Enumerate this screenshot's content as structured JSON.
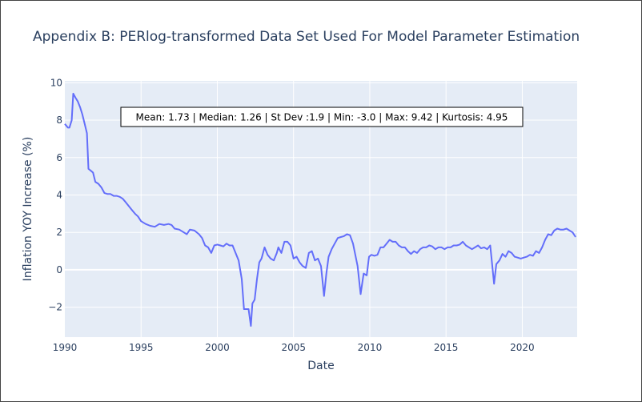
{
  "chart_data": {
    "type": "line",
    "title": "Appendix B: PERlog-transformed Data Set Used For Model Parameter Estimation",
    "xlabel": "Date",
    "ylabel": "Inflation YOY Increase (%)",
    "xlim": [
      1990,
      2023.6
    ],
    "ylim": [
      -3.6,
      10.1
    ],
    "x_ticks": [
      1990,
      1995,
      2000,
      2005,
      2010,
      2015,
      2020
    ],
    "y_ticks": [
      -2,
      0,
      2,
      4,
      6,
      8,
      10
    ],
    "y_tick_labels": [
      "−2",
      "0",
      "2",
      "4",
      "6",
      "8",
      "10"
    ],
    "grid": true,
    "annotation": "Mean: 1.73 | Median: 1.26 | St Dev :1.9 | Min: -3.0 | Max: 9.42 | Kurtosis: 4.95",
    "series": [
      {
        "color": "#636efa",
        "x": [
          1990.0,
          1990.2,
          1990.3,
          1990.45,
          1990.55,
          1990.7,
          1990.85,
          1991.0,
          1991.15,
          1991.3,
          1991.45,
          1991.55,
          1991.7,
          1991.85,
          1992.0,
          1992.2,
          1992.4,
          1992.6,
          1992.8,
          1993.0,
          1993.2,
          1993.4,
          1993.6,
          1993.8,
          1994.0,
          1994.2,
          1994.4,
          1994.6,
          1994.8,
          1995.0,
          1995.3,
          1995.6,
          1995.9,
          1996.2,
          1996.5,
          1996.8,
          1997.0,
          1997.2,
          1997.5,
          1997.8,
          1998.0,
          1998.2,
          1998.5,
          1998.8,
          1999.0,
          1999.2,
          1999.4,
          1999.6,
          1999.8,
          2000.0,
          2000.2,
          2000.4,
          2000.6,
          2000.8,
          2001.0,
          2001.2,
          2001.4,
          2001.6,
          2001.75,
          2001.85,
          2001.95,
          2002.05,
          2002.2,
          2002.3,
          2002.45,
          2002.6,
          2002.75,
          2002.9,
          2003.1,
          2003.3,
          2003.5,
          2003.7,
          2003.9,
          2004.0,
          2004.2,
          2004.4,
          2004.6,
          2004.8,
          2005.0,
          2005.2,
          2005.4,
          2005.6,
          2005.8,
          2006.0,
          2006.2,
          2006.4,
          2006.6,
          2006.8,
          2007.0,
          2007.15,
          2007.3,
          2007.5,
          2007.7,
          2007.9,
          2008.1,
          2008.3,
          2008.5,
          2008.7,
          2008.9,
          2009.0,
          2009.2,
          2009.4,
          2009.6,
          2009.8,
          2009.95,
          2010.1,
          2010.3,
          2010.5,
          2010.7,
          2010.9,
          2011.1,
          2011.3,
          2011.5,
          2011.7,
          2011.9,
          2012.1,
          2012.3,
          2012.5,
          2012.7,
          2012.9,
          2013.1,
          2013.3,
          2013.5,
          2013.7,
          2013.9,
          2014.1,
          2014.3,
          2014.5,
          2014.7,
          2014.9,
          2015.1,
          2015.3,
          2015.5,
          2015.7,
          2015.9,
          2016.1,
          2016.3,
          2016.5,
          2016.7,
          2016.9,
          2017.1,
          2017.3,
          2017.5,
          2017.7,
          2017.9,
          2018.0,
          2018.15,
          2018.3,
          2018.5,
          2018.7,
          2018.9,
          2019.1,
          2019.3,
          2019.5,
          2019.7,
          2019.9,
          2020.1,
          2020.3,
          2020.5,
          2020.7,
          2020.9,
          2021.1,
          2021.3,
          2021.5,
          2021.7,
          2021.9,
          2022.1,
          2022.3,
          2022.5,
          2022.7,
          2022.9,
          2023.1,
          2023.3,
          2023.5
        ],
        "y": [
          7.8,
          7.6,
          7.6,
          8.0,
          9.42,
          9.2,
          9.0,
          8.7,
          8.3,
          7.8,
          7.3,
          5.4,
          5.3,
          5.2,
          4.7,
          4.6,
          4.4,
          4.1,
          4.05,
          4.05,
          3.95,
          3.95,
          3.9,
          3.8,
          3.6,
          3.4,
          3.2,
          3.0,
          2.85,
          2.6,
          2.45,
          2.35,
          2.3,
          2.45,
          2.4,
          2.45,
          2.4,
          2.2,
          2.15,
          2.0,
          1.9,
          2.15,
          2.1,
          1.9,
          1.7,
          1.3,
          1.2,
          0.9,
          1.3,
          1.35,
          1.3,
          1.25,
          1.4,
          1.3,
          1.3,
          0.9,
          0.5,
          -0.5,
          -2.1,
          -2.1,
          -2.1,
          -2.1,
          -3.0,
          -1.8,
          -1.6,
          -0.5,
          0.4,
          0.6,
          1.2,
          0.8,
          0.6,
          0.5,
          0.9,
          1.2,
          0.9,
          1.5,
          1.5,
          1.3,
          0.6,
          0.7,
          0.4,
          0.2,
          0.1,
          0.9,
          1.0,
          0.5,
          0.6,
          0.2,
          -1.4,
          -0.2,
          0.7,
          1.1,
          1.4,
          1.7,
          1.75,
          1.8,
          1.9,
          1.85,
          1.4,
          1.0,
          0.2,
          -1.3,
          -0.2,
          -0.3,
          0.7,
          0.8,
          0.75,
          0.8,
          1.2,
          1.2,
          1.4,
          1.6,
          1.5,
          1.5,
          1.3,
          1.2,
          1.2,
          1.0,
          0.85,
          1.0,
          0.9,
          1.1,
          1.2,
          1.2,
          1.3,
          1.25,
          1.1,
          1.2,
          1.2,
          1.1,
          1.2,
          1.2,
          1.3,
          1.3,
          1.35,
          1.5,
          1.3,
          1.2,
          1.1,
          1.2,
          1.3,
          1.15,
          1.2,
          1.1,
          1.3,
          0.5,
          -0.75,
          0.3,
          0.5,
          0.85,
          0.7,
          1.0,
          0.9,
          0.7,
          0.65,
          0.6,
          0.65,
          0.7,
          0.8,
          0.75,
          1.0,
          0.9,
          1.2,
          1.6,
          1.9,
          1.85,
          2.1,
          2.2,
          2.15,
          2.15,
          2.2,
          2.1,
          2.0,
          1.75
        ]
      }
    ]
  }
}
